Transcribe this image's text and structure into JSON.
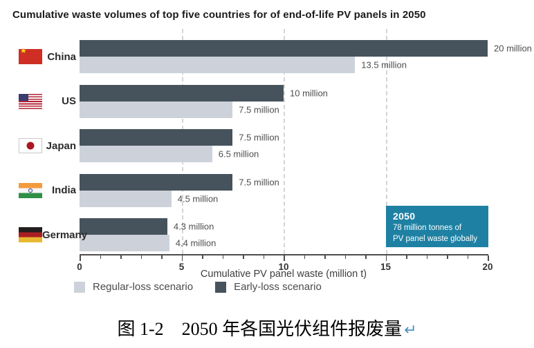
{
  "chart_data": {
    "type": "bar",
    "orientation": "horizontal",
    "title": "Cumulative waste volumes of top five countries for of end-of-life PV panels in 2050",
    "xlabel": "Cumulative PV panel waste (million t)",
    "xlim": [
      0,
      20
    ],
    "xticks": [
      0,
      5,
      10,
      15,
      20
    ],
    "minor_tick_step": 1,
    "gridlines_at": [
      5,
      10,
      15
    ],
    "categories": [
      "China",
      "US",
      "Japan",
      "India",
      "Germany"
    ],
    "flags": [
      "cn",
      "us",
      "jp",
      "in",
      "de"
    ],
    "series": [
      {
        "name": "Early-loss scenario",
        "key": "early",
        "color": "#46535d",
        "values": [
          20,
          10,
          7.5,
          7.5,
          4.3
        ],
        "labels": [
          "20 million",
          "10 million",
          "7.5 million",
          "7.5 million",
          "4.3 million"
        ]
      },
      {
        "name": "Regular-loss scenario",
        "key": "regular",
        "color": "#cdd2da",
        "values": [
          13.5,
          7.5,
          6.5,
          4.5,
          4.4
        ],
        "labels": [
          "13.5 million",
          "7.5 million",
          "6.5 million",
          "4.5 million",
          "4.4 million"
        ]
      }
    ],
    "legend": [
      {
        "label": "Regular-loss scenario",
        "key": "regular"
      },
      {
        "label": "Early-loss scenario",
        "key": "early"
      }
    ],
    "annotation": {
      "year": "2050",
      "lines": [
        "78 million tonnes of",
        "PV panel waste globally"
      ],
      "bg_color": "#1e81a3"
    }
  },
  "caption": {
    "text": "图 1-2　2050 年各国光伏组件报废量",
    "return_mark": "↵"
  },
  "colors": {
    "early_loss": "#46535d",
    "regular_loss": "#cdd2da",
    "annotation_bg": "#1e81a3",
    "grid": "#d4d4d4",
    "axis": "#4c4c4c"
  }
}
